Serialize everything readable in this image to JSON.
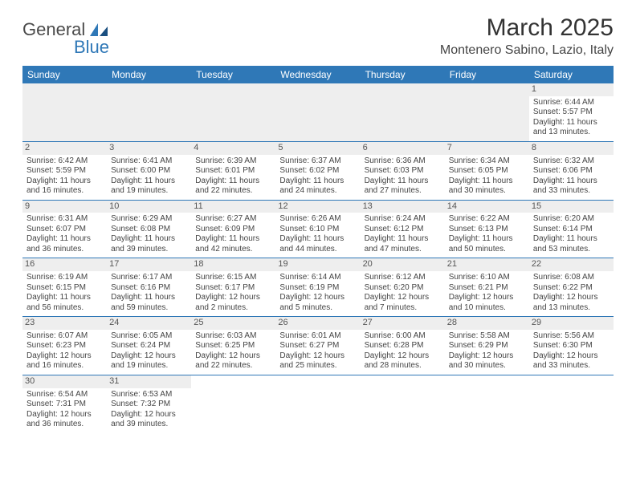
{
  "logo": {
    "text1": "General",
    "text2": "Blue"
  },
  "title": "March 2025",
  "location": "Montenero Sabino, Lazio, Italy",
  "weekdays": [
    "Sunday",
    "Monday",
    "Tuesday",
    "Wednesday",
    "Thursday",
    "Friday",
    "Saturday"
  ],
  "colors": {
    "header_bg": "#2f78b7",
    "daynum_bg": "#eeeeee",
    "border": "#2f78b7"
  },
  "weeks": [
    [
      null,
      null,
      null,
      null,
      null,
      null,
      {
        "n": "1",
        "sr": "Sunrise: 6:44 AM",
        "ss": "Sunset: 5:57 PM",
        "d1": "Daylight: 11 hours",
        "d2": "and 13 minutes."
      }
    ],
    [
      {
        "n": "2",
        "sr": "Sunrise: 6:42 AM",
        "ss": "Sunset: 5:59 PM",
        "d1": "Daylight: 11 hours",
        "d2": "and 16 minutes."
      },
      {
        "n": "3",
        "sr": "Sunrise: 6:41 AM",
        "ss": "Sunset: 6:00 PM",
        "d1": "Daylight: 11 hours",
        "d2": "and 19 minutes."
      },
      {
        "n": "4",
        "sr": "Sunrise: 6:39 AM",
        "ss": "Sunset: 6:01 PM",
        "d1": "Daylight: 11 hours",
        "d2": "and 22 minutes."
      },
      {
        "n": "5",
        "sr": "Sunrise: 6:37 AM",
        "ss": "Sunset: 6:02 PM",
        "d1": "Daylight: 11 hours",
        "d2": "and 24 minutes."
      },
      {
        "n": "6",
        "sr": "Sunrise: 6:36 AM",
        "ss": "Sunset: 6:03 PM",
        "d1": "Daylight: 11 hours",
        "d2": "and 27 minutes."
      },
      {
        "n": "7",
        "sr": "Sunrise: 6:34 AM",
        "ss": "Sunset: 6:05 PM",
        "d1": "Daylight: 11 hours",
        "d2": "and 30 minutes."
      },
      {
        "n": "8",
        "sr": "Sunrise: 6:32 AM",
        "ss": "Sunset: 6:06 PM",
        "d1": "Daylight: 11 hours",
        "d2": "and 33 minutes."
      }
    ],
    [
      {
        "n": "9",
        "sr": "Sunrise: 6:31 AM",
        "ss": "Sunset: 6:07 PM",
        "d1": "Daylight: 11 hours",
        "d2": "and 36 minutes."
      },
      {
        "n": "10",
        "sr": "Sunrise: 6:29 AM",
        "ss": "Sunset: 6:08 PM",
        "d1": "Daylight: 11 hours",
        "d2": "and 39 minutes."
      },
      {
        "n": "11",
        "sr": "Sunrise: 6:27 AM",
        "ss": "Sunset: 6:09 PM",
        "d1": "Daylight: 11 hours",
        "d2": "and 42 minutes."
      },
      {
        "n": "12",
        "sr": "Sunrise: 6:26 AM",
        "ss": "Sunset: 6:10 PM",
        "d1": "Daylight: 11 hours",
        "d2": "and 44 minutes."
      },
      {
        "n": "13",
        "sr": "Sunrise: 6:24 AM",
        "ss": "Sunset: 6:12 PM",
        "d1": "Daylight: 11 hours",
        "d2": "and 47 minutes."
      },
      {
        "n": "14",
        "sr": "Sunrise: 6:22 AM",
        "ss": "Sunset: 6:13 PM",
        "d1": "Daylight: 11 hours",
        "d2": "and 50 minutes."
      },
      {
        "n": "15",
        "sr": "Sunrise: 6:20 AM",
        "ss": "Sunset: 6:14 PM",
        "d1": "Daylight: 11 hours",
        "d2": "and 53 minutes."
      }
    ],
    [
      {
        "n": "16",
        "sr": "Sunrise: 6:19 AM",
        "ss": "Sunset: 6:15 PM",
        "d1": "Daylight: 11 hours",
        "d2": "and 56 minutes."
      },
      {
        "n": "17",
        "sr": "Sunrise: 6:17 AM",
        "ss": "Sunset: 6:16 PM",
        "d1": "Daylight: 11 hours",
        "d2": "and 59 minutes."
      },
      {
        "n": "18",
        "sr": "Sunrise: 6:15 AM",
        "ss": "Sunset: 6:17 PM",
        "d1": "Daylight: 12 hours",
        "d2": "and 2 minutes."
      },
      {
        "n": "19",
        "sr": "Sunrise: 6:14 AM",
        "ss": "Sunset: 6:19 PM",
        "d1": "Daylight: 12 hours",
        "d2": "and 5 minutes."
      },
      {
        "n": "20",
        "sr": "Sunrise: 6:12 AM",
        "ss": "Sunset: 6:20 PM",
        "d1": "Daylight: 12 hours",
        "d2": "and 7 minutes."
      },
      {
        "n": "21",
        "sr": "Sunrise: 6:10 AM",
        "ss": "Sunset: 6:21 PM",
        "d1": "Daylight: 12 hours",
        "d2": "and 10 minutes."
      },
      {
        "n": "22",
        "sr": "Sunrise: 6:08 AM",
        "ss": "Sunset: 6:22 PM",
        "d1": "Daylight: 12 hours",
        "d2": "and 13 minutes."
      }
    ],
    [
      {
        "n": "23",
        "sr": "Sunrise: 6:07 AM",
        "ss": "Sunset: 6:23 PM",
        "d1": "Daylight: 12 hours",
        "d2": "and 16 minutes."
      },
      {
        "n": "24",
        "sr": "Sunrise: 6:05 AM",
        "ss": "Sunset: 6:24 PM",
        "d1": "Daylight: 12 hours",
        "d2": "and 19 minutes."
      },
      {
        "n": "25",
        "sr": "Sunrise: 6:03 AM",
        "ss": "Sunset: 6:25 PM",
        "d1": "Daylight: 12 hours",
        "d2": "and 22 minutes."
      },
      {
        "n": "26",
        "sr": "Sunrise: 6:01 AM",
        "ss": "Sunset: 6:27 PM",
        "d1": "Daylight: 12 hours",
        "d2": "and 25 minutes."
      },
      {
        "n": "27",
        "sr": "Sunrise: 6:00 AM",
        "ss": "Sunset: 6:28 PM",
        "d1": "Daylight: 12 hours",
        "d2": "and 28 minutes."
      },
      {
        "n": "28",
        "sr": "Sunrise: 5:58 AM",
        "ss": "Sunset: 6:29 PM",
        "d1": "Daylight: 12 hours",
        "d2": "and 30 minutes."
      },
      {
        "n": "29",
        "sr": "Sunrise: 5:56 AM",
        "ss": "Sunset: 6:30 PM",
        "d1": "Daylight: 12 hours",
        "d2": "and 33 minutes."
      }
    ],
    [
      {
        "n": "30",
        "sr": "Sunrise: 6:54 AM",
        "ss": "Sunset: 7:31 PM",
        "d1": "Daylight: 12 hours",
        "d2": "and 36 minutes."
      },
      {
        "n": "31",
        "sr": "Sunrise: 6:53 AM",
        "ss": "Sunset: 7:32 PM",
        "d1": "Daylight: 12 hours",
        "d2": "and 39 minutes."
      },
      null,
      null,
      null,
      null,
      null
    ]
  ]
}
